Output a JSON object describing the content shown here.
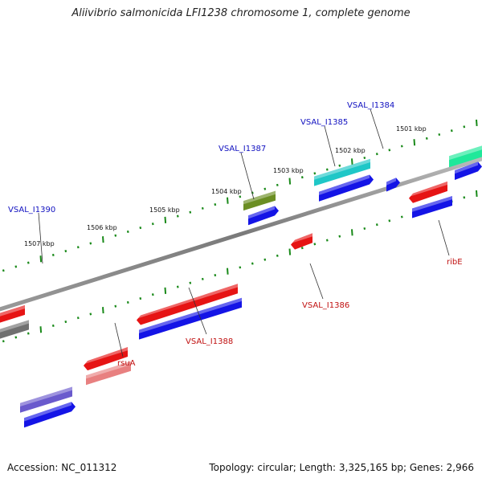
{
  "title": "Aliivibrio salmonicida LFI1238 chromosome 1, complete genome",
  "footer": {
    "accession": "Accession: NC_011312",
    "summary": "Topology: circular; Length: 3,325,165 bp; Genes: 2,966"
  },
  "colors": {
    "backbone": "#8a8a8a",
    "tick_major": "#1a8a1a",
    "tick_minor": "#1a8a1a",
    "label_forward": "#1010c0",
    "label_reverse": "#c01010",
    "label_line": "#333333"
  },
  "kbp_labels": [
    "1507 kbp",
    "1506 kbp",
    "1505 kbp",
    "1504 kbp",
    "1503 kbp",
    "1502 kbp",
    "1501 kbp"
  ],
  "gene_labels": {
    "forward": [
      "VSAL_I1390",
      "VSAL_I1387",
      "VSAL_I1385",
      "VSAL_I1384"
    ],
    "reverse": [
      "rsuA",
      "VSAL_I1388",
      "VSAL_I1386",
      "ribE"
    ]
  },
  "feature_colors": {
    "gene_blue": "#1414e6",
    "cds_red": "#e61414",
    "purple": "#6a5acd",
    "olive": "#6b8e23",
    "cyan": "#1fc7c7",
    "mint": "#20e89a",
    "pink": "#e88080",
    "gray": "#707070"
  }
}
